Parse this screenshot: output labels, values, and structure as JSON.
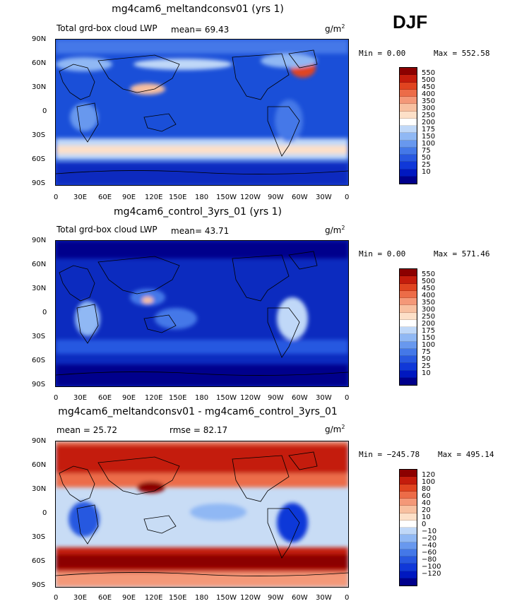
{
  "season": "DJF",
  "units": "g/m2",
  "lat_labels": [
    "90N",
    "60N",
    "30N",
    "0",
    "30S",
    "60S",
    "90S"
  ],
  "lon_labels": [
    "0",
    "30E",
    "60E",
    "90E",
    "120E",
    "150E",
    "180",
    "150W",
    "120W",
    "90W",
    "60W",
    "30W",
    "0"
  ],
  "panels": [
    {
      "title": "mg4cam6_meltandconsv01 (yrs 1)",
      "variable": "Total grd-box cloud LWP",
      "mean": "mean=  69.43",
      "min": "Min =    0.00",
      "max": "Max = 552.58",
      "colorbar_labels": [
        "550",
        "500",
        "450",
        "400",
        "350",
        "300",
        "250",
        "200",
        "175",
        "150",
        "100",
        "75",
        "50",
        "25",
        "10"
      ],
      "colors": {
        "background": "#1a4fd8"
      }
    },
    {
      "title": "mg4cam6_control_3yrs_01 (yrs 1)",
      "variable": "Total grd-box cloud LWP",
      "mean": "mean=  43.71",
      "min": "Min =    0.00",
      "max": "Max = 571.46",
      "colorbar_labels": [
        "550",
        "500",
        "450",
        "400",
        "350",
        "300",
        "250",
        "200",
        "175",
        "150",
        "100",
        "75",
        "50",
        "25",
        "10"
      ],
      "colors": {
        "background": "#0c2bbf"
      }
    },
    {
      "title": "mg4cam6_meltandconsv01 - mg4cam6_control_3yrs_01",
      "mean": "mean =   25.72",
      "rmse": "rmse =   82.17",
      "min": "Min = −245.78",
      "max": "Max = 495.14",
      "colorbar_labels": [
        "120",
        "100",
        "80",
        "60",
        "40",
        "20",
        "10",
        "0",
        "−10",
        "−20",
        "−40",
        "−60",
        "−80",
        "−100",
        "−120"
      ],
      "colors": {
        "background": "#c8dcf5"
      }
    }
  ],
  "colorscale_abs": [
    "#00008c",
    "#0018c0",
    "#1038d8",
    "#2858e0",
    "#4478e8",
    "#6898ee",
    "#90b8f4",
    "#c0d8f8",
    "#ffffff",
    "#fde0c8",
    "#f8c0a0",
    "#f49878",
    "#ec6c48",
    "#e04420",
    "#c41c0c",
    "#8c0000"
  ],
  "colorscale_diff": [
    "#00008c",
    "#0018c0",
    "#1038d8",
    "#2858e0",
    "#4478e8",
    "#6898ee",
    "#90b8f4",
    "#c0d8f8",
    "#ffffff",
    "#fde0c8",
    "#f8c0a0",
    "#f49878",
    "#ec6c48",
    "#e04420",
    "#c41c0c",
    "#8c0000"
  ]
}
